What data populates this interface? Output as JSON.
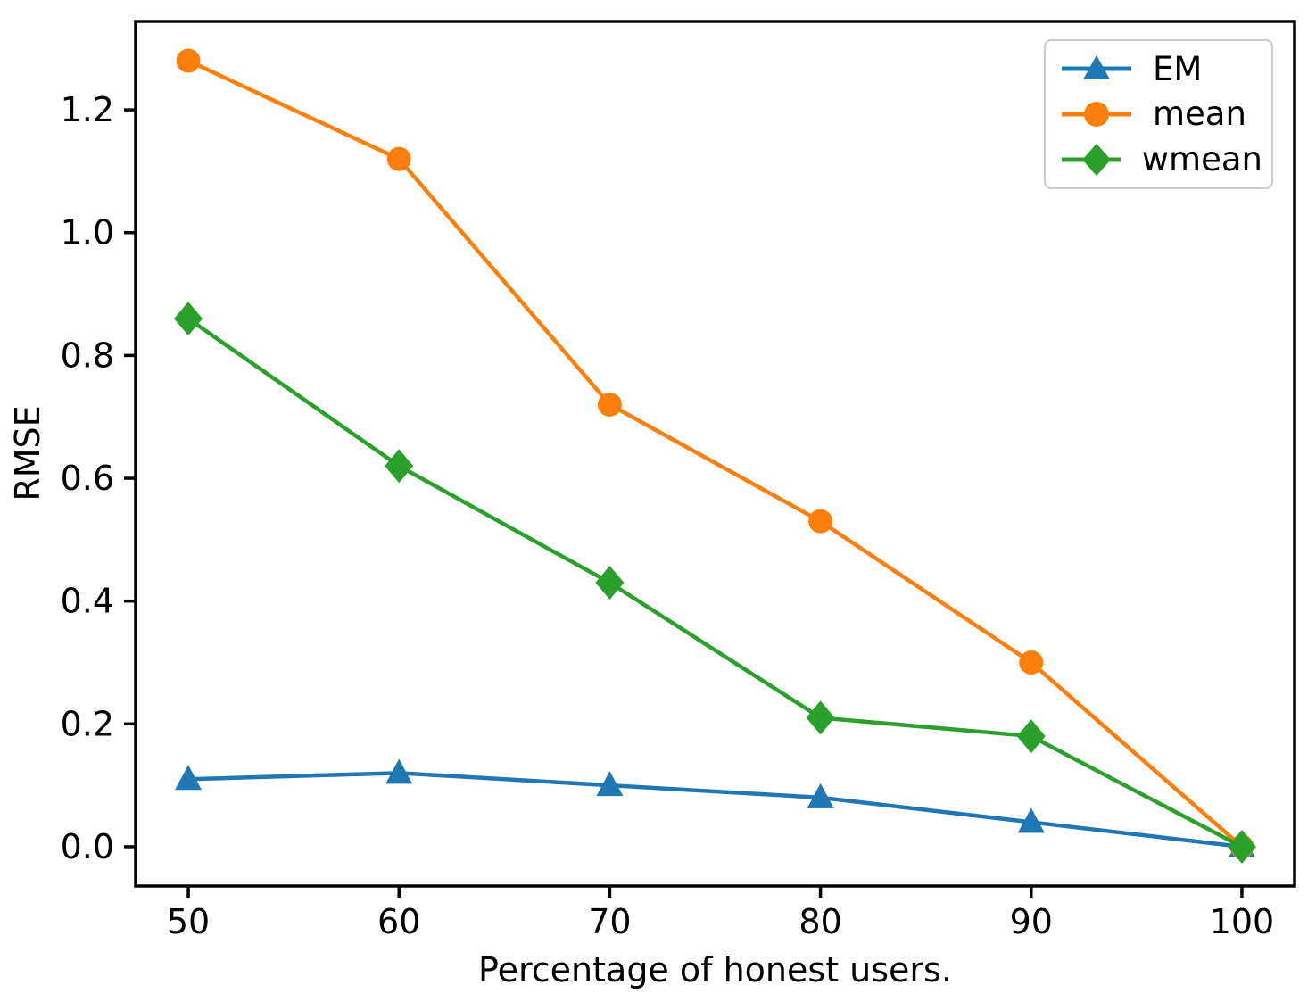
{
  "chart_data": {
    "type": "line",
    "title": "",
    "xlabel": "Percentage of honest users.",
    "ylabel": "RMSE",
    "x": [
      50,
      60,
      70,
      80,
      90,
      100
    ],
    "series": [
      {
        "name": "EM",
        "color": "#1f77b4",
        "marker": "triangle",
        "values": [
          0.11,
          0.12,
          0.1,
          0.08,
          0.04,
          0.0
        ]
      },
      {
        "name": "mean",
        "color": "#ff7f0e",
        "marker": "circle",
        "values": [
          1.28,
          1.12,
          0.72,
          0.53,
          0.3,
          0.0
        ]
      },
      {
        "name": "wmean",
        "color": "#2ca02c",
        "marker": "diamond",
        "values": [
          0.86,
          0.62,
          0.43,
          0.21,
          0.18,
          0.0
        ]
      }
    ],
    "xticks": [
      50,
      60,
      70,
      80,
      90,
      100
    ],
    "yticks": [
      0.0,
      0.2,
      0.4,
      0.6,
      0.8,
      1.0,
      1.2
    ],
    "xlim": [
      47.5,
      102.5
    ],
    "ylim": [
      -0.064,
      1.344
    ],
    "grid": false,
    "legend_position": "upper right",
    "axis_color": "#000000",
    "background": "#ffffff"
  }
}
